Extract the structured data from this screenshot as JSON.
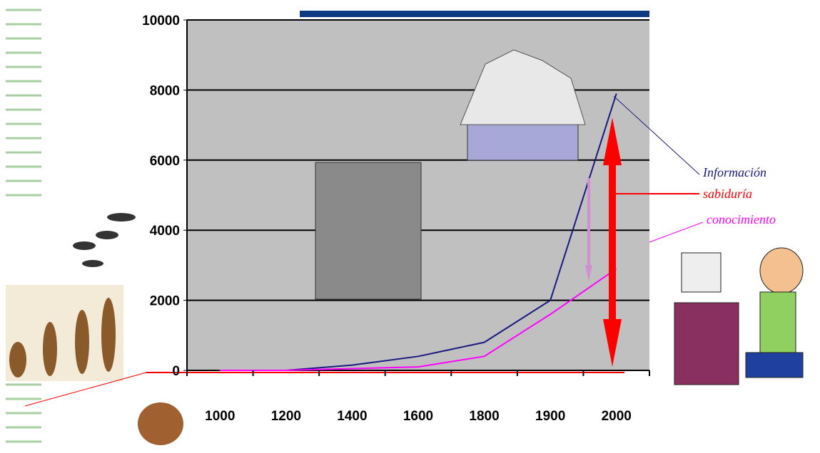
{
  "chart_data": {
    "type": "line",
    "categories": [
      "1000",
      "1200",
      "1400",
      "1600",
      "1800",
      "1900",
      "2000"
    ],
    "series": [
      {
        "name": "Información",
        "color": "#1a1a80",
        "values": [
          0,
          0,
          150,
          400,
          800,
          2000,
          7900
        ]
      },
      {
        "name": "conocimiento",
        "color": "#ff00ff",
        "values": [
          0,
          0,
          50,
          100,
          400,
          1600,
          2900
        ]
      }
    ],
    "annotation": {
      "text": "sabiduría",
      "color": "#ff0000"
    },
    "ylim": [
      0,
      10000
    ],
    "yticks": [
      0,
      2000,
      4000,
      6000,
      8000,
      10000
    ],
    "grid": true
  }
}
